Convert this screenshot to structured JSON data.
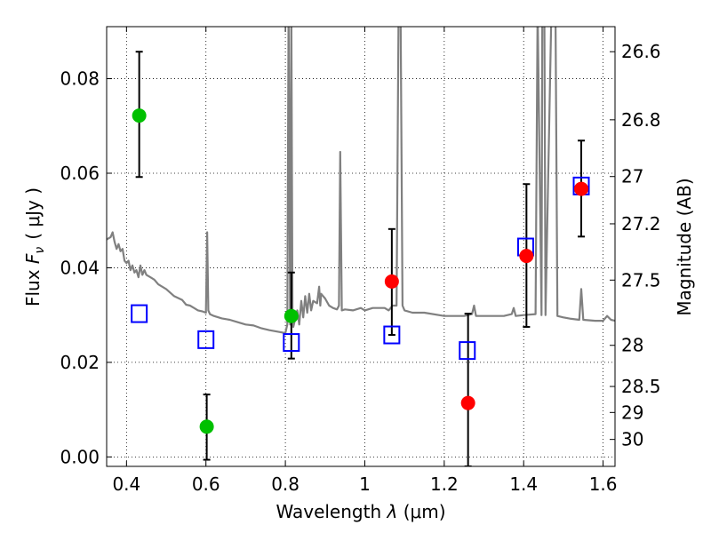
{
  "chart_data": {
    "type": "scatter",
    "title": "",
    "xlabel_prefix": "Wavelength",
    "xlabel_symbol": "λ",
    "xlabel_unit": "(μm)",
    "ylabel_prefix": "Flux",
    "ylabel_symbol": "F",
    "ylabel_subscript": "ν",
    "ylabel_unit": "( μJy )",
    "y2label": "Magnitude (AB)",
    "xlim": [
      0.35,
      1.63
    ],
    "ylim": [
      -0.002,
      0.091
    ],
    "grid": true,
    "x_ticks": [
      {
        "value": 0.4,
        "label": "0.4"
      },
      {
        "value": 0.6,
        "label": "0.6"
      },
      {
        "value": 0.8,
        "label": "0.8"
      },
      {
        "value": 1.0,
        "label": "1"
      },
      {
        "value": 1.2,
        "label": "1.2"
      },
      {
        "value": 1.4,
        "label": "1.4"
      },
      {
        "value": 1.6,
        "label": "1.6"
      }
    ],
    "y_ticks": [
      {
        "value": 0.0,
        "label": "0.00"
      },
      {
        "value": 0.02,
        "label": "0.02"
      },
      {
        "value": 0.04,
        "label": "0.04"
      },
      {
        "value": 0.06,
        "label": "0.06"
      },
      {
        "value": 0.08,
        "label": "0.08"
      }
    ],
    "mag_ticks": [
      {
        "label": "26.6",
        "flux": 0.0857
      },
      {
        "label": "26.8",
        "flux": 0.0713
      },
      {
        "label": "27",
        "flux": 0.0593
      },
      {
        "label": "27.2",
        "flux": 0.0493
      },
      {
        "label": "27.5",
        "flux": 0.0374
      },
      {
        "label": "28",
        "flux": 0.0236
      },
      {
        "label": "28.5",
        "flux": 0.0149
      },
      {
        "label": "29",
        "flux": 0.0094
      },
      {
        "label": "30",
        "flux": 0.0037
      }
    ],
    "series": [
      {
        "kind": "line",
        "color": "#808080",
        "points": [
          [
            0.35,
            0.046
          ],
          [
            0.36,
            0.0465
          ],
          [
            0.365,
            0.0475
          ],
          [
            0.37,
            0.0455
          ],
          [
            0.375,
            0.044
          ],
          [
            0.38,
            0.045
          ],
          [
            0.385,
            0.0435
          ],
          [
            0.39,
            0.044
          ],
          [
            0.395,
            0.0415
          ],
          [
            0.4,
            0.041
          ],
          [
            0.405,
            0.0415
          ],
          [
            0.41,
            0.0395
          ],
          [
            0.415,
            0.0405
          ],
          [
            0.42,
            0.039
          ],
          [
            0.425,
            0.0395
          ],
          [
            0.43,
            0.038
          ],
          [
            0.435,
            0.0405
          ],
          [
            0.44,
            0.0385
          ],
          [
            0.445,
            0.0395
          ],
          [
            0.45,
            0.0385
          ],
          [
            0.46,
            0.038
          ],
          [
            0.47,
            0.0375
          ],
          [
            0.48,
            0.0365
          ],
          [
            0.5,
            0.0355
          ],
          [
            0.52,
            0.034
          ],
          [
            0.54,
            0.0332
          ],
          [
            0.55,
            0.0322
          ],
          [
            0.56,
            0.032
          ],
          [
            0.57,
            0.0315
          ],
          [
            0.58,
            0.031
          ],
          [
            0.59,
            0.0308
          ],
          [
            0.6,
            0.0305
          ],
          [
            0.603,
            0.0475
          ],
          [
            0.606,
            0.031
          ],
          [
            0.61,
            0.0302
          ],
          [
            0.62,
            0.0298
          ],
          [
            0.64,
            0.0293
          ],
          [
            0.66,
            0.029
          ],
          [
            0.68,
            0.0285
          ],
          [
            0.7,
            0.028
          ],
          [
            0.72,
            0.0278
          ],
          [
            0.74,
            0.0272
          ],
          [
            0.76,
            0.0268
          ],
          [
            0.78,
            0.0265
          ],
          [
            0.8,
            0.0262
          ],
          [
            0.805,
            0.028
          ],
          [
            0.808,
            0.095
          ],
          [
            0.812,
            0.028
          ],
          [
            0.815,
            0.095
          ],
          [
            0.818,
            0.03
          ],
          [
            0.82,
            0.0275
          ],
          [
            0.83,
            0.031
          ],
          [
            0.835,
            0.028
          ],
          [
            0.84,
            0.033
          ],
          [
            0.845,
            0.0295
          ],
          [
            0.85,
            0.034
          ],
          [
            0.855,
            0.0305
          ],
          [
            0.86,
            0.0345
          ],
          [
            0.865,
            0.031
          ],
          [
            0.87,
            0.033
          ],
          [
            0.88,
            0.0325
          ],
          [
            0.885,
            0.036
          ],
          [
            0.888,
            0.032
          ],
          [
            0.89,
            0.0345
          ],
          [
            0.9,
            0.0335
          ],
          [
            0.91,
            0.032
          ],
          [
            0.92,
            0.0315
          ],
          [
            0.93,
            0.0312
          ],
          [
            0.935,
            0.032
          ],
          [
            0.938,
            0.0645
          ],
          [
            0.942,
            0.031
          ],
          [
            0.95,
            0.0312
          ],
          [
            0.97,
            0.031
          ],
          [
            0.99,
            0.0315
          ],
          [
            1.0,
            0.031
          ],
          [
            1.02,
            0.0315
          ],
          [
            1.05,
            0.0315
          ],
          [
            1.06,
            0.031
          ],
          [
            1.07,
            0.032
          ],
          [
            1.08,
            0.032
          ],
          [
            1.085,
            0.095
          ],
          [
            1.09,
            0.095
          ],
          [
            1.095,
            0.032
          ],
          [
            1.1,
            0.031
          ],
          [
            1.12,
            0.0305
          ],
          [
            1.15,
            0.0305
          ],
          [
            1.2,
            0.0298
          ],
          [
            1.25,
            0.0298
          ],
          [
            1.27,
            0.0302
          ],
          [
            1.275,
            0.032
          ],
          [
            1.28,
            0.0298
          ],
          [
            1.3,
            0.0298
          ],
          [
            1.35,
            0.0298
          ],
          [
            1.37,
            0.0302
          ],
          [
            1.375,
            0.0315
          ],
          [
            1.38,
            0.0298
          ],
          [
            1.4,
            0.03
          ],
          [
            1.43,
            0.0302
          ],
          [
            1.435,
            0.095
          ],
          [
            1.445,
            0.03
          ],
          [
            1.447,
            0.095
          ],
          [
            1.452,
            0.095
          ],
          [
            1.455,
            0.03
          ],
          [
            1.47,
            0.095
          ],
          [
            1.48,
            0.095
          ],
          [
            1.485,
            0.0298
          ],
          [
            1.5,
            0.0295
          ],
          [
            1.52,
            0.0292
          ],
          [
            1.54,
            0.029
          ],
          [
            1.545,
            0.0355
          ],
          [
            1.55,
            0.029
          ],
          [
            1.58,
            0.0288
          ],
          [
            1.6,
            0.0288
          ],
          [
            1.61,
            0.0298
          ],
          [
            1.62,
            0.029
          ],
          [
            1.63,
            0.0288
          ]
        ]
      },
      {
        "kind": "square",
        "color": "#0000ff",
        "points": [
          [
            0.432,
            0.0303
          ],
          [
            0.6,
            0.0248
          ],
          [
            0.815,
            0.0242
          ],
          [
            1.068,
            0.0258
          ],
          [
            1.258,
            0.0225
          ],
          [
            1.405,
            0.0444
          ],
          [
            1.545,
            0.0573
          ]
        ]
      },
      {
        "kind": "circle",
        "color": "#00c000",
        "points": [
          {
            "x": 0.432,
            "y": 0.0722,
            "ylo": 0.0592,
            "yhi": 0.0857
          },
          {
            "x": 0.602,
            "y": 0.0064,
            "ylo": -0.0006,
            "yhi": 0.0132
          },
          {
            "x": 0.815,
            "y": 0.0298,
            "ylo": 0.0208,
            "yhi": 0.039
          }
        ]
      },
      {
        "kind": "circle",
        "color": "#ff0000",
        "points": [
          {
            "x": 1.068,
            "y": 0.0371,
            "ylo": 0.0258,
            "yhi": 0.0482
          },
          {
            "x": 1.26,
            "y": 0.0114,
            "ylo": -0.002,
            "yhi": 0.0303
          },
          {
            "x": 1.407,
            "y": 0.0425,
            "ylo": 0.0275,
            "yhi": 0.0577
          },
          {
            "x": 1.545,
            "y": 0.0567,
            "ylo": 0.0466,
            "yhi": 0.0669
          }
        ]
      }
    ]
  }
}
